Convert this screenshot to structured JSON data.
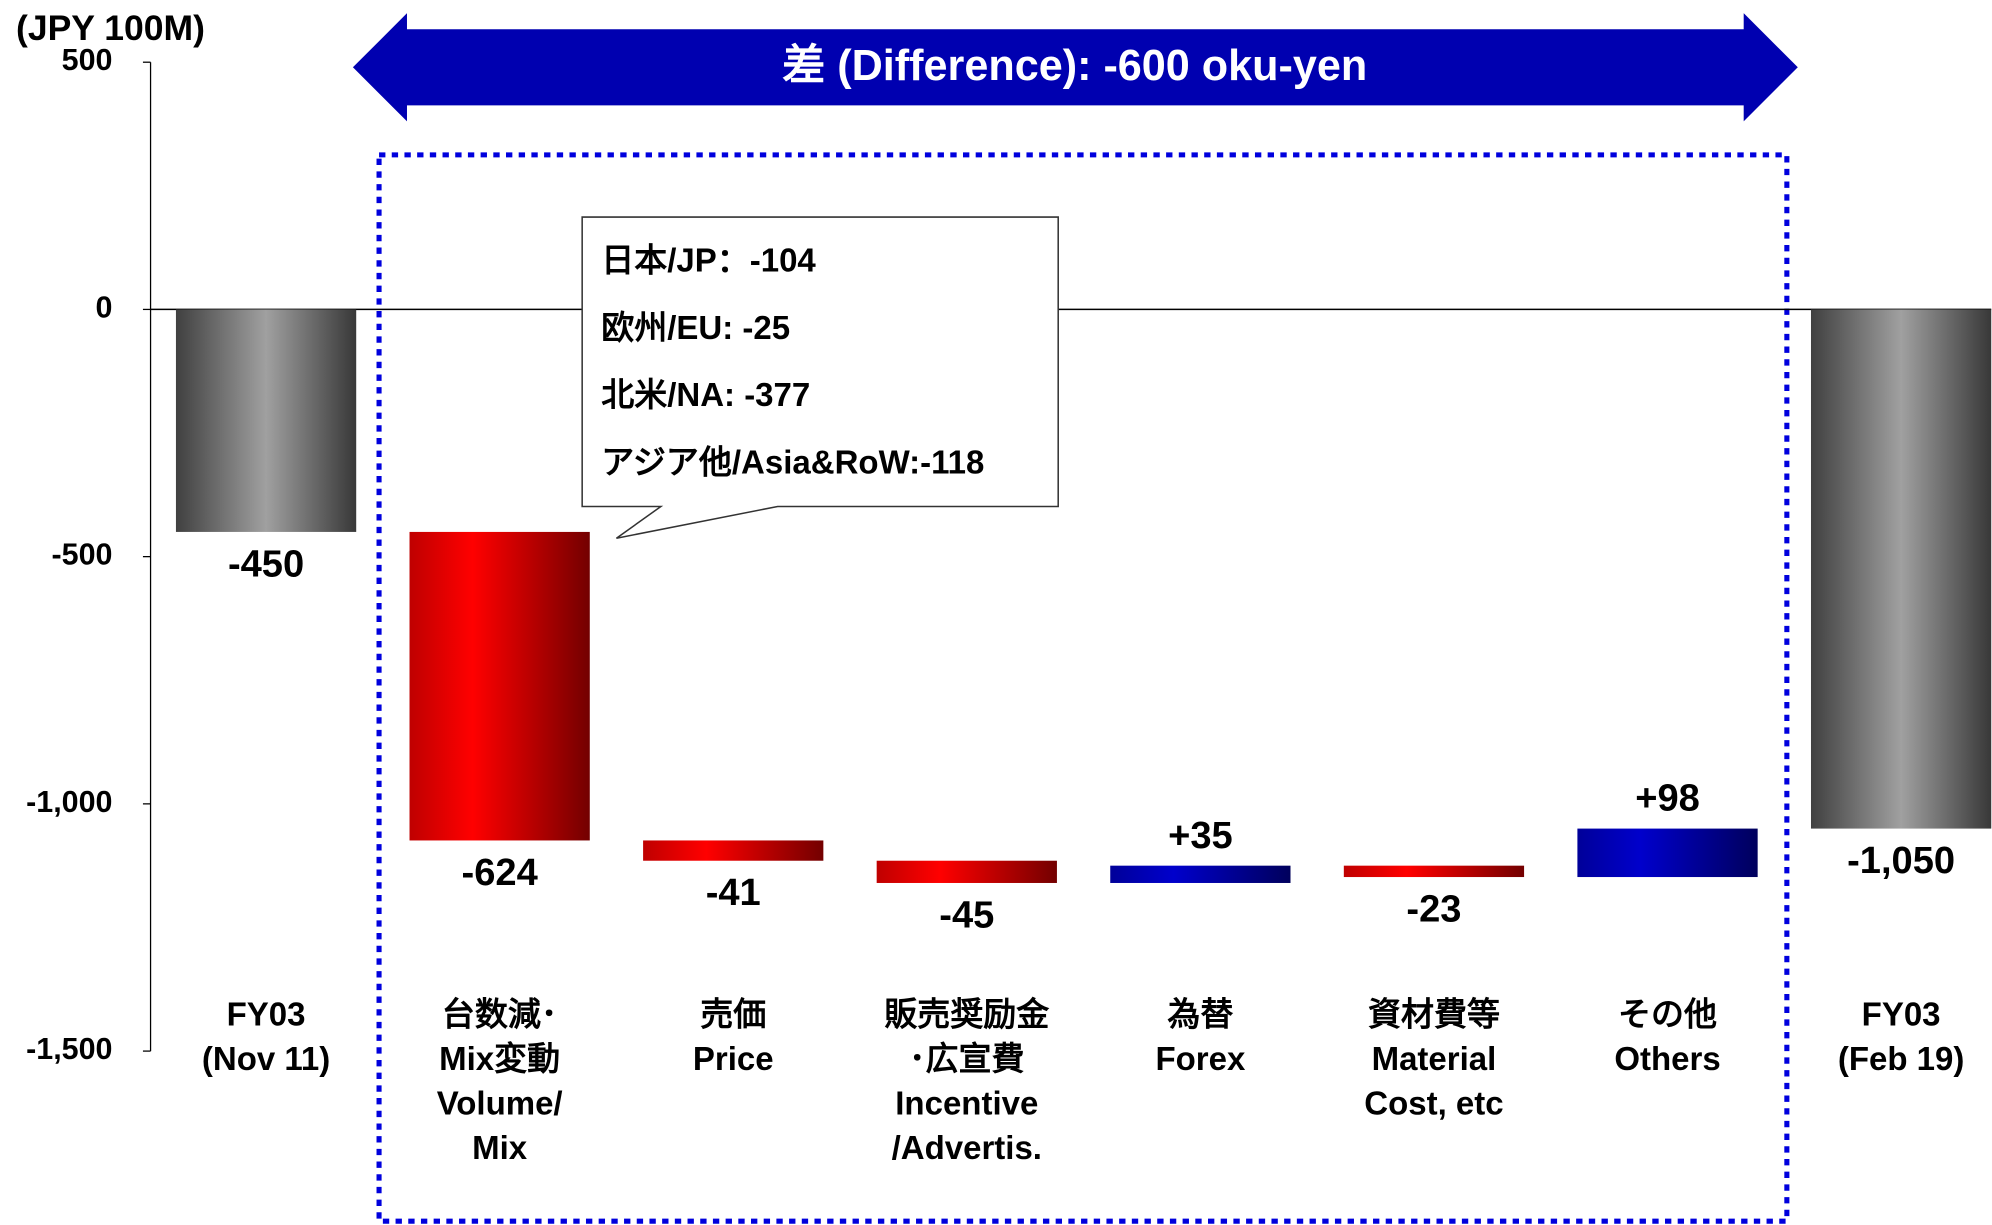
{
  "chart_data": {
    "type": "waterfall",
    "axis_label": "(JPY 100M)",
    "annotation": "差 (Difference): -600 oku-yen",
    "callout": [
      "日本/JP：-104",
      "欧州/EU: -25",
      "北米/NA: -377",
      "アジア他/Asia&RoW:-118"
    ],
    "categories": [
      [
        "FY03",
        "(Nov 11)"
      ],
      [
        "台数減･",
        "Mix変動",
        "Volume/",
        "Mix"
      ],
      [
        "売価",
        "Price"
      ],
      [
        "販売奨励金",
        "･広宣費",
        "Incentive",
        "/Advertis."
      ],
      [
        "為替",
        "Forex"
      ],
      [
        "資材費等",
        "Material",
        "Cost, etc"
      ],
      [
        "その他",
        "Others"
      ],
      [
        "FY03",
        "(Feb 19)"
      ]
    ],
    "measure": [
      "total",
      "relative",
      "relative",
      "relative",
      "relative",
      "relative",
      "relative",
      "total"
    ],
    "values": [
      -450,
      -624,
      -41,
      -45,
      35,
      -23,
      98,
      -1050
    ],
    "value_labels": [
      "-450",
      "-624",
      "-41",
      "-45",
      "+35",
      "-23",
      "+98",
      "-1,050"
    ],
    "colors": {
      "total": "#a0a0a0",
      "decrease": "#ff0000",
      "increase": "#0000cc"
    },
    "ylim": [
      -1500,
      500
    ],
    "yticks": [
      500,
      0,
      -500,
      {
        "value": -1000,
        "label": "-1,000"
      },
      {
        "value": -1500,
        "label": "-1,500"
      }
    ]
  }
}
